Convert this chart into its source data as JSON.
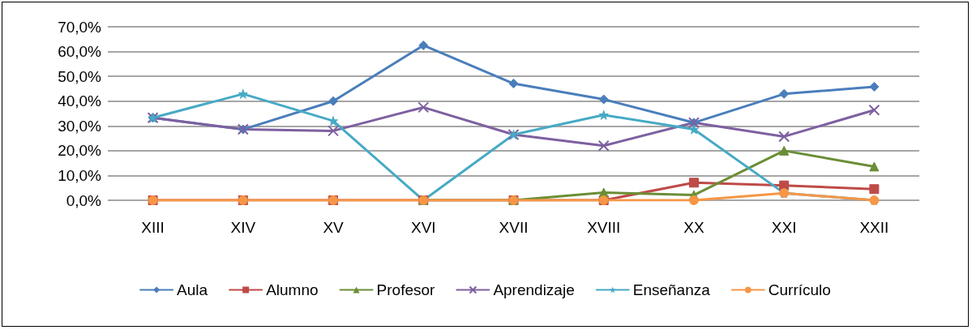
{
  "chart_data": {
    "type": "line",
    "categories": [
      "XIII",
      "XIV",
      "XV",
      "XVI",
      "XVII",
      "XVIII",
      "XX",
      "XXI",
      "XXII"
    ],
    "series": [
      {
        "name": "Aula",
        "color": "#4a7ebb",
        "marker": "diamond",
        "values": [
          33.3,
          28.6,
          40,
          62.5,
          47.1,
          40.7,
          31.3,
          42.9,
          45.8
        ]
      },
      {
        "name": "Alumno",
        "color": "#be4b48",
        "marker": "square",
        "values": [
          0,
          0,
          0,
          0,
          0,
          0,
          7.1,
          6.0,
          4.5
        ]
      },
      {
        "name": "Profesor",
        "color": "#6b8e36",
        "marker": "triangle",
        "values": [
          null,
          null,
          null,
          0,
          0,
          3.1,
          2.1,
          20,
          13.6
        ]
      },
      {
        "name": "Aprendizaje",
        "color": "#7d60a0",
        "marker": "cross",
        "values": [
          33.3,
          28.6,
          28.0,
          37.5,
          26.5,
          22.0,
          31.3,
          25.7,
          36.4
        ]
      },
      {
        "name": "Enseñanza",
        "color": "#46aac5",
        "marker": "star",
        "values": [
          33.3,
          42.9,
          32.0,
          0,
          26.5,
          34.4,
          28.6,
          2.9,
          0
        ]
      },
      {
        "name": "Currículo",
        "color": "#f79646",
        "marker": "circle",
        "values": [
          0,
          0,
          0,
          0,
          0,
          0,
          0,
          2.9,
          0
        ]
      }
    ],
    "ylim": [
      0,
      70
    ],
    "yticks": [
      {
        "value": 0,
        "label": "0,0%"
      },
      {
        "value": 10,
        "label": "10,0%"
      },
      {
        "value": 20,
        "label": "20,0%"
      },
      {
        "value": 30,
        "label": "30,0%"
      },
      {
        "value": 40,
        "label": "40,0%"
      },
      {
        "value": 50,
        "label": "50,0%"
      },
      {
        "value": 60,
        "label": "60,0%"
      },
      {
        "value": 70,
        "label": "70,0%"
      }
    ],
    "grid": "y",
    "legend": "bottom"
  }
}
